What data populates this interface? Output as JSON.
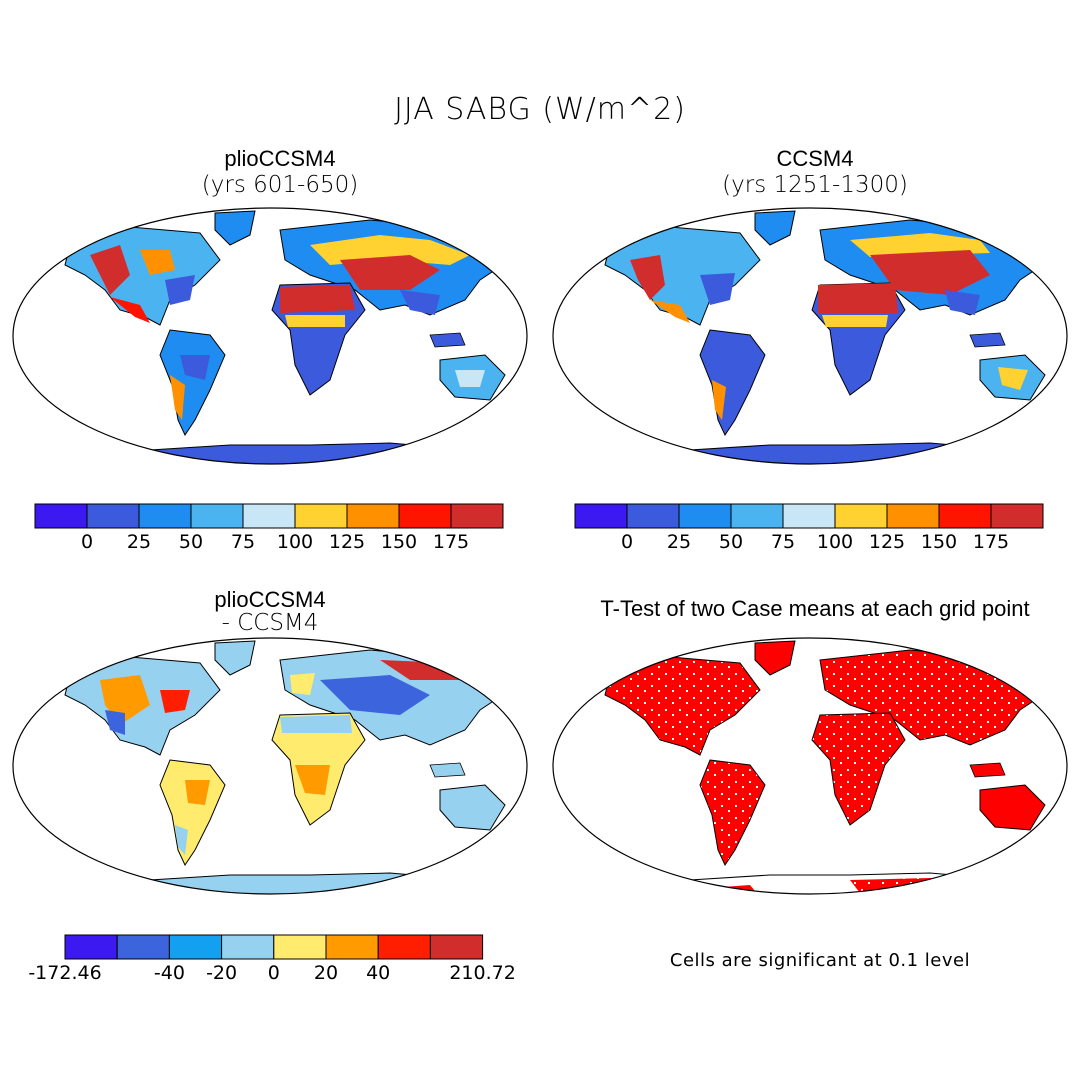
{
  "figure": {
    "title": "JJA SABG (W/m^2)",
    "footnote": "Cells are significant at 0.1 level"
  },
  "panels": [
    {
      "id": "pliocene",
      "title": "plioCCSM4",
      "subtitle": "(yrs 601-650)",
      "colorbar": {
        "colors": [
          "#3c19f0",
          "#3c5adc",
          "#1e8cf0",
          "#4bb4f0",
          "#c8e6f5",
          "#ffd232",
          "#ff9100",
          "#ff1400",
          "#d22d2d"
        ],
        "labels": [
          "0",
          "25",
          "50",
          "75",
          "100",
          "125",
          "150",
          "175"
        ]
      }
    },
    {
      "id": "control",
      "title": "CCSM4",
      "subtitle": "(yrs 1251-1300)",
      "colorbar": {
        "colors": [
          "#3c19f0",
          "#3c5adc",
          "#1e8cf0",
          "#4bb4f0",
          "#c8e6f5",
          "#ffd232",
          "#ff9100",
          "#ff1400",
          "#d22d2d"
        ],
        "labels": [
          "0",
          "25",
          "50",
          "75",
          "100",
          "125",
          "150",
          "175"
        ]
      }
    },
    {
      "id": "difference",
      "title": "plioCCSM4",
      "subtitle": "- CCSM4",
      "colorbar": {
        "colors": [
          "#3c19f0",
          "#3c64dc",
          "#14a0f0",
          "#96d2f0",
          "#ffeb6e",
          "#ff9b00",
          "#ff1e00",
          "#d22d2d"
        ],
        "labels": [
          "-172.46",
          "",
          "-40",
          "-20",
          "0",
          "20",
          "40",
          "",
          "210.72"
        ]
      }
    },
    {
      "id": "ttest",
      "title": "T-Test of two Case means at each grid point"
    }
  ]
}
